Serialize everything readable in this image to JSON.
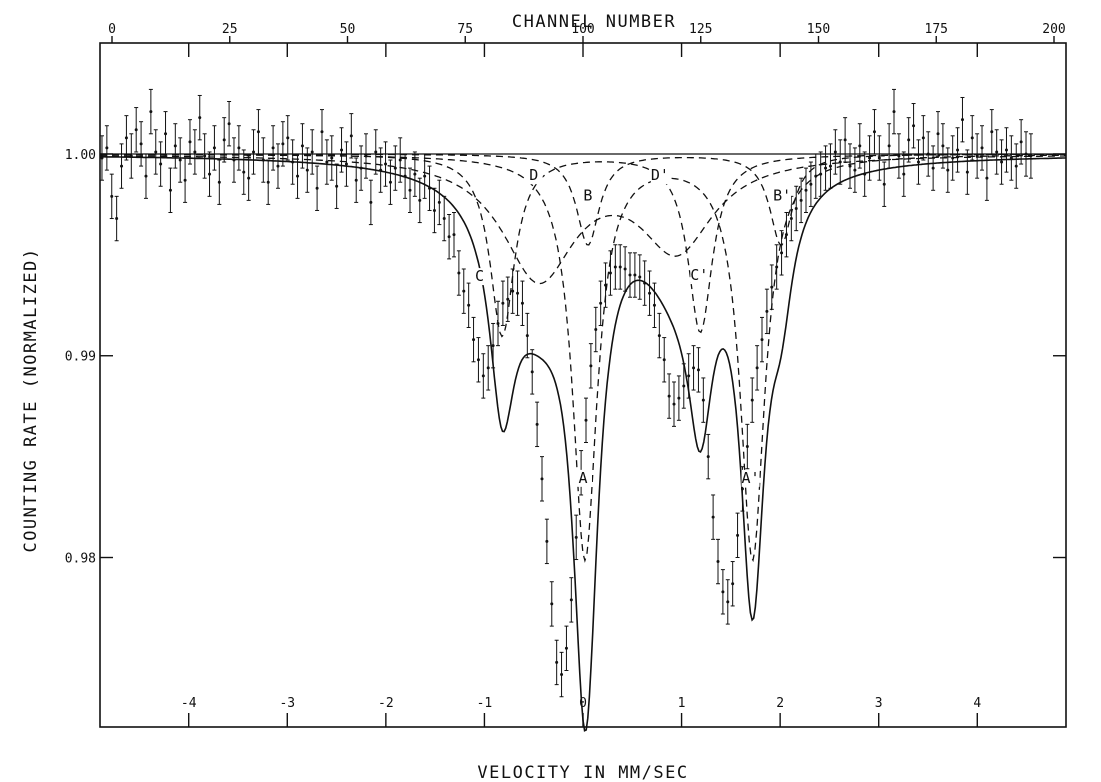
{
  "chart_data": {
    "type": "scatter",
    "title": "",
    "xlabel": "VELOCITY IN MM/SEC",
    "ylabel": "COUNTING RATE (NORMALIZED)",
    "x2label": "CHANNEL NUMBER",
    "xlim": [
      -4.9,
      4.9
    ],
    "ylim": [
      0.9716,
      1.0055
    ],
    "x2lim": [
      0,
      200
    ],
    "xticks": [
      -4,
      -3,
      -2,
      -1,
      0,
      1,
      2,
      3,
      4
    ],
    "xticklabels": [
      "-4",
      "-3",
      "-2",
      "-1",
      "0",
      "1",
      "2",
      "3",
      "4"
    ],
    "x2ticks": [
      0,
      25,
      50,
      75,
      100,
      125,
      150,
      175,
      200
    ],
    "x2ticklabels": [
      "0",
      "25",
      "50",
      "75",
      "100",
      "125",
      "150",
      "175",
      "200"
    ],
    "yticks": [
      1.0,
      0.99,
      0.98
    ],
    "yticklabels": [
      "1.00",
      "0.99",
      "0.98"
    ],
    "grid": false,
    "legend": "none",
    "baseline": 1.0,
    "fit_components": [
      {
        "pair": "A-A'",
        "lines": [
          {
            "name": "A",
            "center": 0.02,
            "depth": 0.02,
            "width": 0.3
          },
          {
            "name": "A'",
            "center": 1.72,
            "depth": 0.02,
            "width": 0.3
          }
        ]
      },
      {
        "pair": "B-B'",
        "lines": [
          {
            "name": "B",
            "center": 0.05,
            "depth": 0.0045,
            "width": 0.28
          },
          {
            "name": "B'",
            "center": 2.01,
            "depth": 0.0045,
            "width": 0.28
          }
        ]
      },
      {
        "pair": "C-C'",
        "lines": [
          {
            "name": "C",
            "center": -0.82,
            "depth": 0.009,
            "width": 0.3
          },
          {
            "name": "C'",
            "center": 1.19,
            "depth": 0.0088,
            "width": 0.3
          }
        ]
      },
      {
        "pair": "D-D'",
        "lines": [
          {
            "name": "D",
            "center": -0.45,
            "depth": 0.006,
            "width": 0.9
          },
          {
            "name": "D'",
            "center": 0.95,
            "depth": 0.0045,
            "width": 0.9
          }
        ]
      }
    ],
    "peak_labels": [
      {
        "text": "D",
        "x": -0.5,
        "y": 0.99875
      },
      {
        "text": "B",
        "x": 0.05,
        "y": 0.99775
      },
      {
        "text": "D'",
        "x": 0.78,
        "y": 0.99875
      },
      {
        "text": "B'",
        "x": 2.02,
        "y": 0.99775
      },
      {
        "text": "C",
        "x": -1.05,
        "y": 0.99375
      },
      {
        "text": "C'",
        "x": 1.18,
        "y": 0.9938
      },
      {
        "text": "A",
        "x": 0.0,
        "y": 0.98375
      },
      {
        "text": "A'",
        "x": 1.7,
        "y": 0.98375
      }
    ],
    "series": [
      {
        "kind": "points_with_error_bars",
        "x_step": 0.0496,
        "x_start": -4.88,
        "error_bar": 0.0011,
        "y": [
          0.9998,
          1.0003,
          0.9979,
          0.9968,
          0.9994,
          1.0008,
          0.9999,
          1.0012,
          1.0005,
          0.9989,
          1.0021,
          1.0001,
          0.9995,
          1.001,
          0.9982,
          1.0004,
          0.9997,
          0.9987,
          1.0006,
          1.0001,
          1.0018,
          0.9999,
          0.999,
          1.0003,
          0.9986,
          1.0007,
          1.0015,
          0.9997,
          1.0003,
          0.9991,
          0.9988,
          1.0001,
          1.0011,
          0.9997,
          0.9986,
          1.0003,
          0.9994,
          1.0005,
          1.0008,
          0.9996,
          0.9989,
          1.0004,
          0.9992,
          1.0001,
          0.9983,
          1.0011,
          0.9996,
          0.9998,
          0.9984,
          1.0002,
          0.9995,
          1.0009,
          0.9987,
          0.9993,
          0.9999,
          0.9976,
          1.0001,
          0.9992,
          0.9995,
          0.9986,
          0.9993,
          0.9997,
          0.9989,
          0.9982,
          0.999,
          0.9977,
          0.9989,
          0.9983,
          0.9972,
          0.9976,
          0.9968,
          0.9959,
          0.996,
          0.9941,
          0.9932,
          0.9925,
          0.9908,
          0.9898,
          0.989,
          0.9894,
          0.9905,
          0.9916,
          0.9926,
          0.9928,
          0.9932,
          0.9931,
          0.9926,
          0.991,
          0.9892,
          0.9866,
          0.9839,
          0.9808,
          0.9777,
          0.9748,
          0.9742,
          0.9755,
          0.9779,
          0.981,
          0.9842,
          0.9868,
          0.9895,
          0.9913,
          0.9926,
          0.9935,
          0.9941,
          0.9944,
          0.9944,
          0.9943,
          0.994,
          0.994,
          0.9939,
          0.9936,
          0.9931,
          0.9925,
          0.991,
          0.9898,
          0.988,
          0.9876,
          0.9879,
          0.9885,
          0.989,
          0.9894,
          0.9893,
          0.9878,
          0.985,
          0.982,
          0.9798,
          0.9783,
          0.9778,
          0.9787,
          0.9811,
          0.9834,
          0.9855,
          0.9878,
          0.9894,
          0.9908,
          0.9922,
          0.9934,
          0.9944,
          0.9951,
          0.996,
          0.9968,
          0.9973,
          0.9977,
          0.9982,
          0.9985,
          0.9989,
          0.999,
          0.9993,
          0.9994,
          1.0001,
          0.9996,
          1.0007,
          0.9994,
          0.9992,
          1.0004,
          0.999,
          0.9998,
          1.0011,
          0.9998,
          0.9985,
          1.0004,
          1.0021,
          0.9999,
          0.999,
          1.0007,
          1.0014,
          0.9996,
          1.0008,
          1.0,
          0.9993,
          1.001,
          1.0004,
          0.9992,
          0.9998,
          1.0002,
          1.0017,
          0.9991,
          1.0008,
          0.9999,
          1.0003,
          0.9988,
          1.0011,
          1.0001,
          0.9996,
          1.0002,
          0.9998,
          0.9994,
          1.0006,
          1.0,
          0.9999
        ]
      },
      {
        "kind": "fit",
        "name": "",
        "style": "solid"
      },
      {
        "kind": "components",
        "name": "",
        "style": "dashed"
      }
    ]
  }
}
